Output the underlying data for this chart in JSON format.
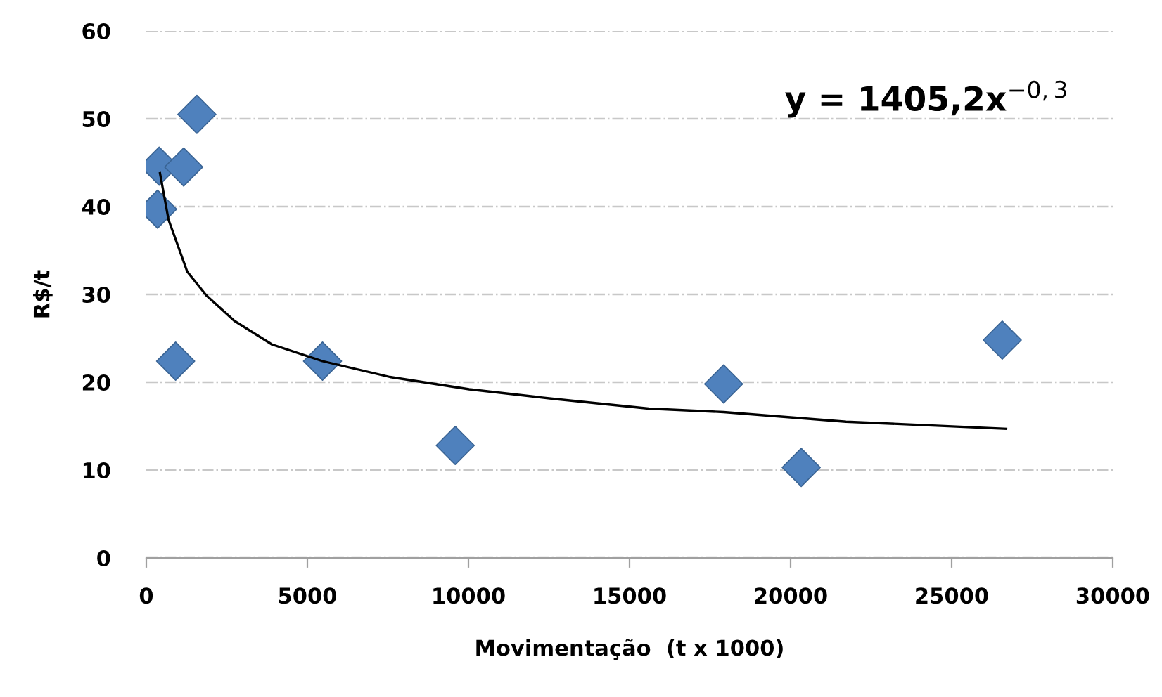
{
  "chart_data": {
    "type": "scatter",
    "xlabel": "Movimentação  (t x 1000)",
    "ylabel": "R$/t",
    "series": [
      {
        "color": "#4f81bd",
        "marker": "diamond",
        "x": [
          400,
          1160,
          1570,
          350,
          910,
          5470,
          9590,
          17920,
          20330,
          26570
        ],
        "values": [
          44.6,
          44.5,
          50.5,
          39.7,
          22.4,
          22.4,
          12.8,
          19.8,
          10.3,
          24.8
        ]
      },
      {
        "type": "line",
        "color": "#000000",
        "marker": "none",
        "line_style": "solid",
        "x": [
          425,
          690,
          1270,
          1860,
          2730,
          3900,
          5470,
          7560,
          10020,
          12660,
          15590,
          17920,
          21720,
          26690
        ],
        "values": [
          43.8,
          38.5,
          32.6,
          29.9,
          27.0,
          24.3,
          22.4,
          20.6,
          19.2,
          18.1,
          17.0,
          16.6,
          15.5,
          14.7
        ]
      }
    ],
    "annotations": [
      "y = 1405,2x$^{−0,3}$"
    ],
    "xlim": [
      0,
      30000
    ],
    "xticks": [
      0,
      5000,
      10000,
      15000,
      20000,
      25000,
      30000
    ],
    "ylim": [
      0,
      60
    ],
    "yticks": [
      0,
      10,
      20,
      30,
      40,
      50,
      60
    ],
    "grid": "y",
    "legend": false
  }
}
